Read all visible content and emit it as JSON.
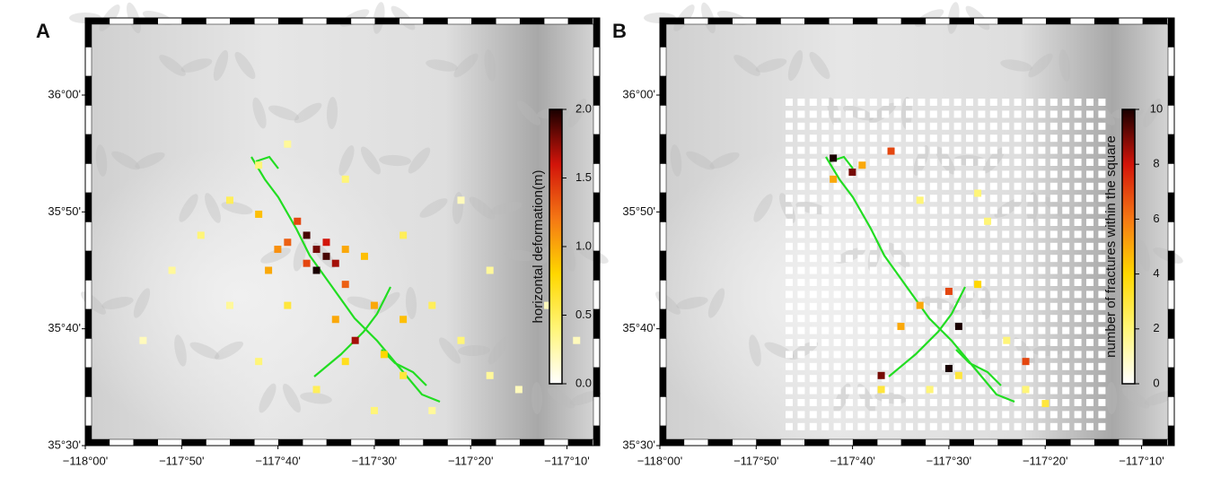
{
  "panel_a": {
    "label": "A",
    "type": "scatter",
    "xlim": [
      -118,
      -117.11
    ],
    "ylim": [
      35.5,
      36.11
    ],
    "xticks": [
      {
        "value": -118,
        "label": "−118°00'"
      },
      {
        "value": -117.8333333,
        "label": "−117°50'"
      },
      {
        "value": -117.6666667,
        "label": "−117°40'"
      },
      {
        "value": -117.5,
        "label": "−117°30'"
      },
      {
        "value": -117.3333333,
        "label": "−117°20'"
      },
      {
        "value": -117.1666667,
        "label": "−117°10'"
      }
    ],
    "yticks": [
      {
        "value": 35.5,
        "label": "35°30'"
      },
      {
        "value": 35.6666667,
        "label": "35°40'"
      },
      {
        "value": 35.8333333,
        "label": "35°50'"
      },
      {
        "value": 36,
        "label": "36°00'"
      }
    ],
    "colorbar": {
      "label": "horizontal deformation(m)",
      "lim": [
        0,
        2
      ],
      "ticks": [
        {
          "value": 0,
          "label": "0.0"
        },
        {
          "value": 0.5,
          "label": "0.5"
        },
        {
          "value": 1,
          "label": "1.0"
        },
        {
          "value": 1.5,
          "label": "1.5"
        },
        {
          "value": 2,
          "label": "2.0"
        }
      ]
    },
    "points": {
      "lon": [
        -117.617,
        -117.6,
        -117.583,
        -117.567,
        -117.6,
        -117.583,
        -117.633,
        -117.65,
        -117.617,
        -117.55,
        -117.533,
        -117.667,
        -117.683,
        -117.55,
        -117.517,
        -117.5,
        -117.45,
        -117.567,
        -117.7,
        -117.483,
        -117.75,
        -117.8,
        -117.85,
        -117.7,
        -117.65,
        -117.55,
        -117.45,
        -117.4,
        -117.35,
        -117.3,
        -117.25,
        -117.4,
        -117.5,
        -117.6,
        -117.7,
        -117.75,
        -117.9,
        -117.2,
        -117.15,
        -117.3,
        -117.35,
        -117.65,
        -117.45,
        -117.55
      ],
      "lat": [
        35.8,
        35.78,
        35.77,
        35.76,
        35.75,
        35.79,
        35.82,
        35.79,
        35.76,
        35.73,
        35.65,
        35.78,
        35.75,
        35.78,
        35.77,
        35.7,
        35.68,
        35.68,
        35.83,
        35.63,
        35.85,
        35.8,
        35.75,
        35.9,
        35.93,
        35.88,
        35.8,
        35.7,
        35.65,
        35.6,
        35.58,
        35.55,
        35.55,
        35.58,
        35.62,
        35.7,
        35.65,
        35.7,
        35.65,
        35.75,
        35.85,
        35.7,
        35.6,
        35.62
      ],
      "values": [
        1.9,
        1.8,
        1.9,
        1.7,
        2.0,
        1.6,
        1.4,
        1.3,
        1.4,
        1.3,
        1.7,
        1.1,
        1.0,
        1.0,
        0.9,
        1.0,
        0.9,
        1.0,
        0.9,
        0.8,
        0.5,
        0.4,
        0.3,
        0.4,
        0.3,
        0.4,
        0.5,
        0.5,
        0.4,
        0.3,
        0.2,
        0.3,
        0.4,
        0.5,
        0.4,
        0.3,
        0.2,
        0.2,
        0.2,
        0.3,
        0.2,
        0.6,
        0.6,
        0.7
      ]
    }
  },
  "panel_b": {
    "label": "B",
    "type": "scatter",
    "xlim": [
      -118,
      -117.11
    ],
    "ylim": [
      35.5,
      36.11
    ],
    "xticks": [
      {
        "value": -118,
        "label": "−118°00'"
      },
      {
        "value": -117.8333333,
        "label": "−117°50'"
      },
      {
        "value": -117.6666667,
        "label": "−117°40'"
      },
      {
        "value": -117.5,
        "label": "−117°30'"
      },
      {
        "value": -117.3333333,
        "label": "−117°20'"
      },
      {
        "value": -117.1666667,
        "label": "−117°10'"
      }
    ],
    "yticks": [
      {
        "value": 35.5,
        "label": "35°30'"
      },
      {
        "value": 35.6666667,
        "label": "35°40'"
      },
      {
        "value": 35.8333333,
        "label": "35°50'"
      },
      {
        "value": 36,
        "label": "36°00'"
      }
    ],
    "colorbar": {
      "label": "number of fractures within the square",
      "lim": [
        0,
        10
      ],
      "ticks": [
        0,
        2,
        4,
        6,
        8,
        10
      ]
    },
    "points": {
      "lon": [
        -117.7,
        -117.667,
        -117.483,
        -117.5,
        -117.617,
        -117.6,
        -117.5,
        -117.367,
        -117.7,
        -117.65,
        -117.55,
        -117.583,
        -117.45,
        -117.55,
        -117.45,
        -117.433,
        -117.617,
        -117.533,
        -117.483,
        -117.367,
        -117.333,
        -117.4
      ],
      "lat": [
        35.91,
        35.89,
        35.67,
        35.61,
        35.6,
        35.92,
        35.72,
        35.62,
        35.88,
        35.9,
        35.7,
        35.67,
        35.73,
        35.85,
        35.86,
        35.82,
        35.58,
        35.58,
        35.6,
        35.58,
        35.56,
        35.65
      ],
      "values": [
        10,
        9,
        10,
        10,
        9,
        7,
        7,
        7,
        5,
        5,
        5,
        5,
        4,
        2,
        2,
        2,
        3,
        2,
        3,
        2,
        3,
        2
      ]
    }
  }
}
